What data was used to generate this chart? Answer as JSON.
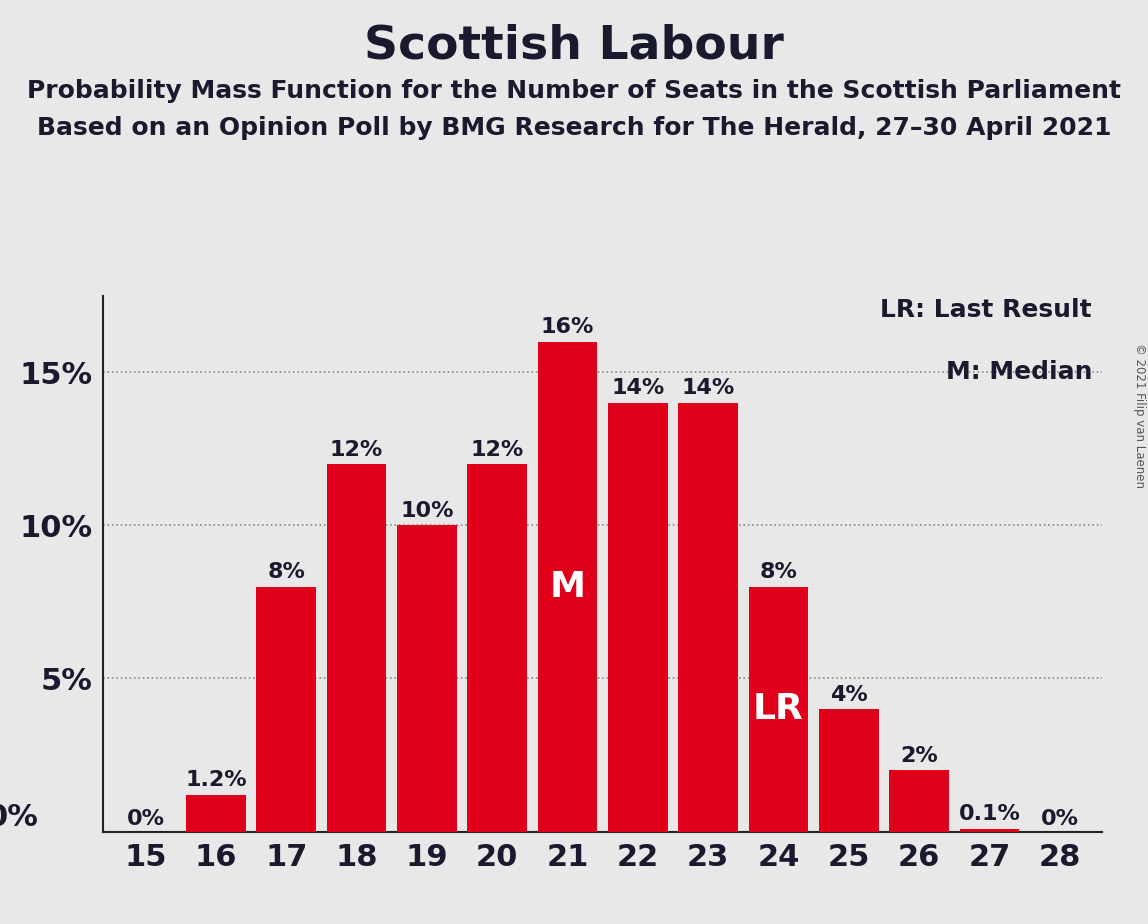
{
  "title": "Scottish Labour",
  "subtitle1": "Probability Mass Function for the Number of Seats in the Scottish Parliament",
  "subtitle2": "Based on an Opinion Poll by BMG Research for The Herald, 27–30 April 2021",
  "copyright": "© 2021 Filip van Laenen",
  "seats": [
    15,
    16,
    17,
    18,
    19,
    20,
    21,
    22,
    23,
    24,
    25,
    26,
    27,
    28
  ],
  "values": [
    0.0,
    1.2,
    8.0,
    12.0,
    10.0,
    12.0,
    16.0,
    14.0,
    14.0,
    8.0,
    4.0,
    2.0,
    0.1,
    0.0
  ],
  "labels": [
    "0%",
    "1.2%",
    "8%",
    "12%",
    "10%",
    "12%",
    "16%",
    "14%",
    "14%",
    "8%",
    "4%",
    "2%",
    "0.1%",
    "0%"
  ],
  "bar_color": "#E0001B",
  "background_color": "#E8E8E8",
  "median_seat": 21,
  "lr_seat": 24,
  "legend_lr": "LR: Last Result",
  "legend_m": "M: Median",
  "yticks": [
    0,
    5,
    10,
    15
  ],
  "ylim": [
    0,
    17.5
  ],
  "ylabel_labels": [
    "",
    "5%",
    "10%",
    "15%"
  ],
  "title_fontsize": 34,
  "subtitle_fontsize": 18,
  "label_fontsize": 16,
  "axis_fontsize": 22,
  "legend_fontsize": 18,
  "inner_label_fontsize": 26
}
